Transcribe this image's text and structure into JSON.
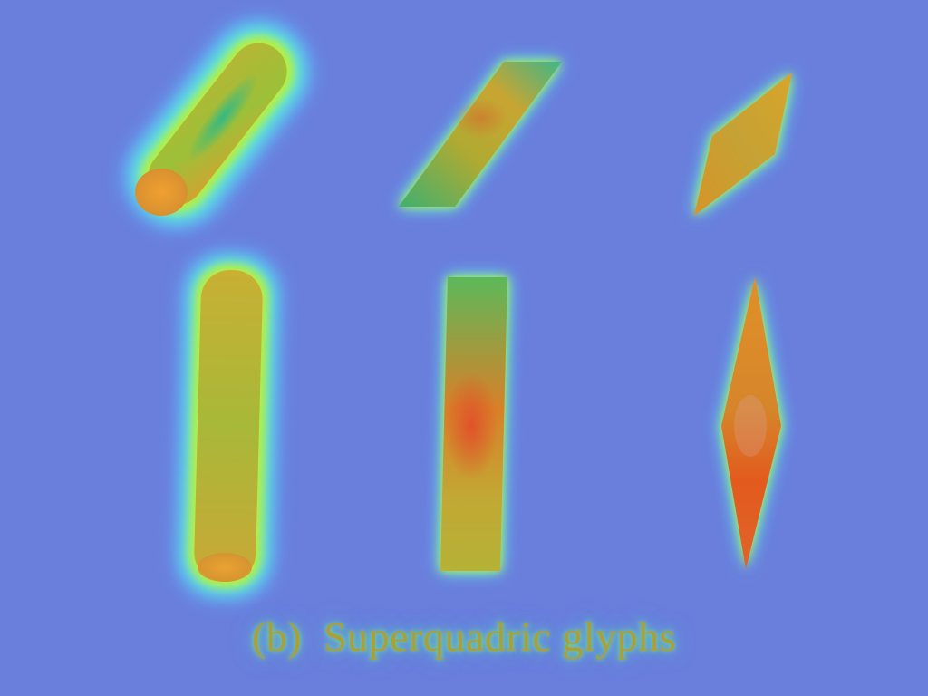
{
  "caption": {
    "label": "(b)",
    "title": "Superquadric glyphs"
  },
  "colors": {
    "background": "#6a7fdc",
    "glow_outer": "#5fb2ff",
    "glow_mid": "#63f0c8",
    "glow_inner": "#b8ee3a",
    "glyph_green": "#6fbf3a",
    "glyph_yellow": "#c9b030",
    "glyph_orange": "#e07a25",
    "glyph_red": "#e05020",
    "glyph_teal": "#2fb98a",
    "caption_text": "#a9a03a"
  },
  "glyphs": [
    {
      "name": "cylinder-tilted",
      "shape": "cylinder"
    },
    {
      "name": "box-tilted",
      "shape": "box"
    },
    {
      "name": "diamond-tilted",
      "shape": "diamond"
    },
    {
      "name": "cylinder-vertical",
      "shape": "cylinder"
    },
    {
      "name": "box-vertical",
      "shape": "box"
    },
    {
      "name": "diamond-vertical",
      "shape": "diamond"
    }
  ]
}
